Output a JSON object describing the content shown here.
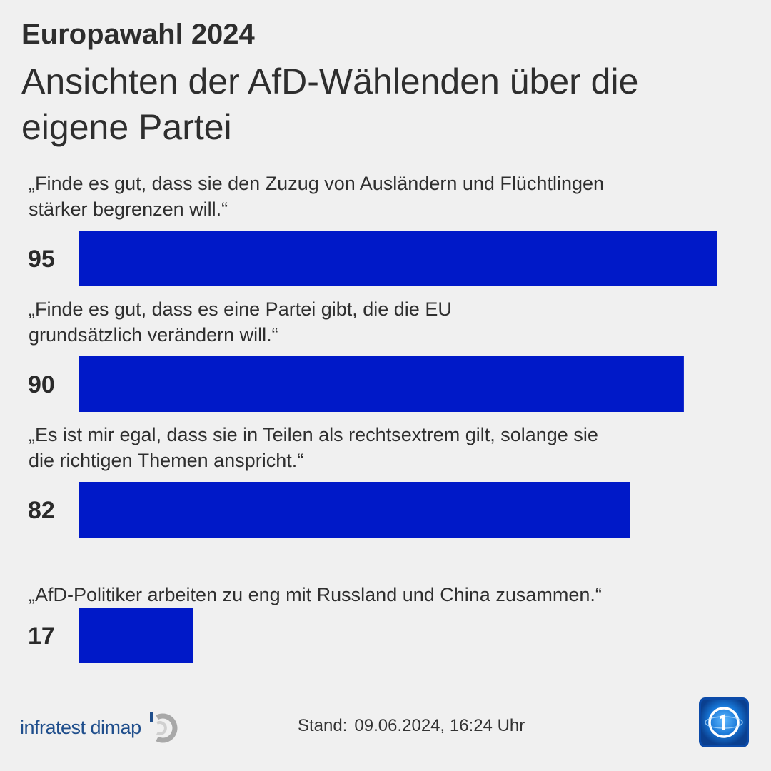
{
  "header": {
    "kicker": "Europawahl 2024",
    "title": "Ansichten der AfD-Wählenden über die eigene Partei"
  },
  "chart_data": {
    "type": "bar",
    "orientation": "horizontal",
    "categories": [
      [
        "„Finde es gut, dass sie den Zuzug von Ausländern und Flüchtlingen",
        "stärker begrenzen will.“"
      ],
      [
        "„Finde es gut, dass es eine Partei gibt, die die EU",
        "grundsätzlich verändern will.“"
      ],
      [
        "„Es ist mir egal, dass sie in Teilen als rechtsextrem gilt, solange sie",
        "die richtigen Themen anspricht.“"
      ],
      [
        "„AfD-Politiker arbeiten zu eng mit Russland und China zusammen.“"
      ]
    ],
    "values": [
      95,
      90,
      82,
      17
    ],
    "xlim": [
      0,
      100
    ],
    "bar_color": "#0019c8",
    "grid": false,
    "legend": "none"
  },
  "footer": {
    "source": "infratest dimap",
    "stand_label": "Stand:",
    "stand_value": "09.06.2024, 16:24 Uhr"
  },
  "colors": {
    "background": "#f0f0f0",
    "bar": "#0019c8",
    "brand_text": "#1f4e8c",
    "logo_blue": "#0b5fbf"
  },
  "icons": {
    "source_logo": "infratest-dimap-logo-icon",
    "broadcaster_logo": "tagesschau-logo-icon"
  }
}
